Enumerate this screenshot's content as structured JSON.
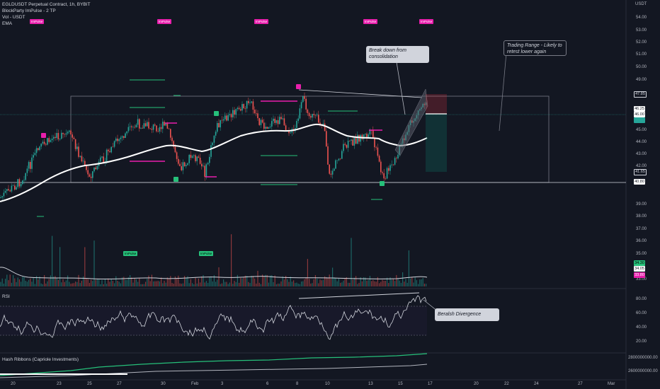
{
  "header": {
    "title": "EGLDUSDT Perpetual Contract, 1h, BYBIT",
    "indicator1": "BlockParty ImPulse - 2 TP",
    "indicator2": "Vol - USDT",
    "indicator3": "EMA",
    "currency": "USDT"
  },
  "panes": {
    "rsi_label": "RSI",
    "hash_label": "Hash Ribbons (Capriole Investments)"
  },
  "annotations": {
    "breakdown": "Break down from consolidation",
    "trading_range": "Trading Range - Likely to retest lower again",
    "divergence": "Beralsh Divergence"
  },
  "signals": {
    "impulse": "ImPulse"
  },
  "price_axis": [
    "54.00",
    "53.00",
    "52.00",
    "51.00",
    "50.00",
    "49.00",
    "47.85",
    "46.25",
    "46.00",
    "45.00",
    "44.00",
    "43.00",
    "42.00",
    "41.65",
    "40.80",
    "39.00",
    "38.00",
    "37.00",
    "36.00",
    "35.00",
    "34.30",
    "34.05",
    "33.80",
    "33.00"
  ],
  "price_tags": {
    "top": "47.85",
    "current": "46.25",
    "current_green": "46.00",
    "stop": "41.65",
    "range_low": "40.80",
    "vol_green": "34.30",
    "vol_white": "34.05",
    "vol_pink": "33.80"
  },
  "rsi_axis": [
    "80.00",
    "60.00",
    "40.00",
    "20.00"
  ],
  "hash_axis": [
    "2800000000.00",
    "2600000000.00"
  ],
  "time_axis": [
    "20",
    "23",
    "25",
    "27",
    "30",
    "Feb",
    "3",
    "6",
    "8",
    "10",
    "13",
    "15",
    "17",
    "20",
    "22",
    "24",
    "27",
    "Mar"
  ],
  "colors": {
    "background": "#131722",
    "up": "#26a69a",
    "down": "#ef5350",
    "ema": "#ffffff",
    "impulse_magenta": "#e91eac",
    "impulse_green": "#26c07a"
  }
}
